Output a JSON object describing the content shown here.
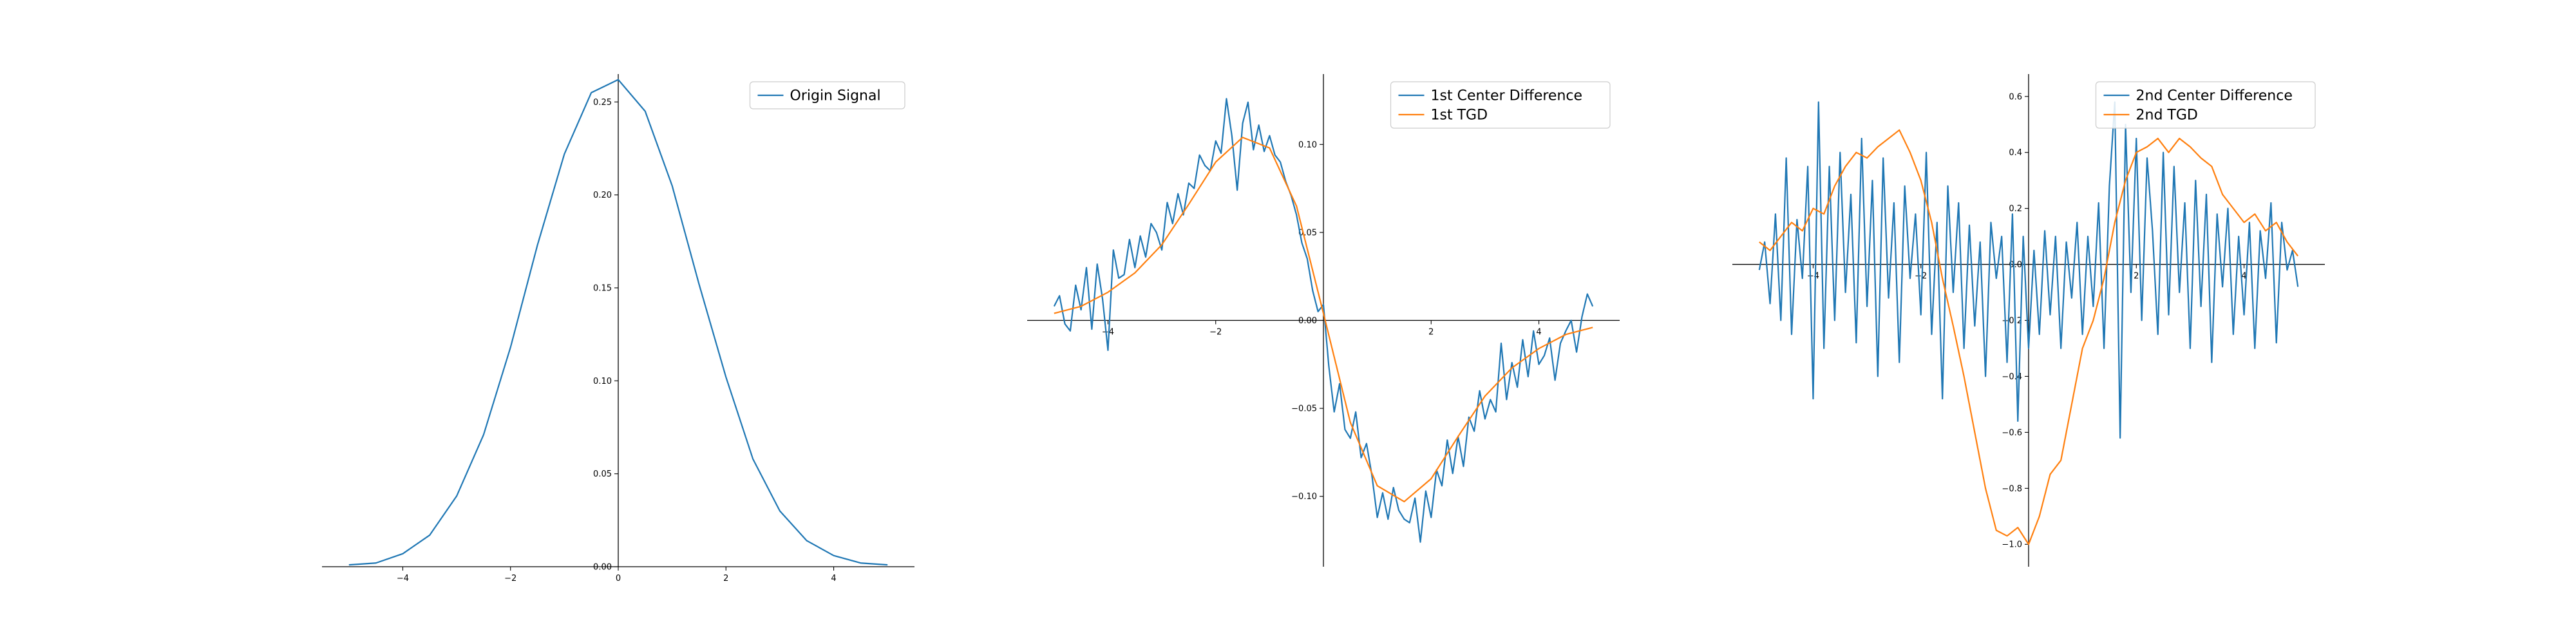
{
  "chart_data": [
    {
      "type": "line",
      "title": "",
      "xlabel": "",
      "ylabel": "",
      "xlim": [
        -5.5,
        5.5
      ],
      "ylim": [
        0,
        0.265
      ],
      "x_ticks": [
        -4,
        -2,
        0,
        2,
        4
      ],
      "x_tick_labels": [
        "−4",
        "−2",
        "0",
        "2",
        "4"
      ],
      "y_ticks": [
        0,
        0.05,
        0.1,
        0.15,
        0.2,
        0.25
      ],
      "y_tick_labels": [
        "0.00",
        "0.05",
        "0.10",
        "0.15",
        "0.20",
        "0.25"
      ],
      "spines": "centered",
      "grid": false,
      "legend_position": "top-right",
      "series": [
        {
          "name": "Origin Signal",
          "color": "#1f77b4",
          "x": [
            -5.0,
            -4.5,
            -4.0,
            -3.5,
            -3.0,
            -2.5,
            -2.0,
            -1.5,
            -1.0,
            -0.5,
            0.0,
            0.5,
            1.0,
            1.5,
            2.0,
            2.5,
            3.0,
            3.5,
            4.0,
            4.5,
            5.0
          ],
          "y": [
            0.001,
            0.002,
            0.007,
            0.017,
            0.038,
            0.071,
            0.118,
            0.173,
            0.222,
            0.255,
            0.262,
            0.245,
            0.205,
            0.152,
            0.102,
            0.058,
            0.03,
            0.014,
            0.006,
            0.002,
            0.001
          ]
        }
      ]
    },
    {
      "type": "line",
      "title": "",
      "xlabel": "",
      "ylabel": "",
      "xlim": [
        -5.5,
        5.5
      ],
      "ylim": [
        -0.14,
        0.14
      ],
      "x_ticks": [
        -4,
        -2,
        2,
        4
      ],
      "x_tick_labels": [
        "−4",
        "−2",
        "2",
        "4"
      ],
      "y_ticks": [
        -0.1,
        -0.05,
        0.0,
        0.05,
        0.1
      ],
      "y_tick_labels": [
        "−0.10",
        "−0.05",
        "0.00",
        "0.05",
        "0.10"
      ],
      "spines": "centered",
      "grid": false,
      "legend_position": "top-right",
      "series": [
        {
          "name": "1st Center Difference",
          "color": "#1f77b4",
          "x": [
            -5.0,
            -4.9,
            -4.8,
            -4.7,
            -4.6,
            -4.5,
            -4.4,
            -4.3,
            -4.2,
            -4.1,
            -4.0,
            -3.9,
            -3.8,
            -3.7,
            -3.6,
            -3.5,
            -3.4,
            -3.3,
            -3.2,
            -3.1,
            -3.0,
            -2.9,
            -2.8,
            -2.7,
            -2.6,
            -2.5,
            -2.4,
            -2.3,
            -2.2,
            -2.1,
            -2.0,
            -1.9,
            -1.8,
            -1.7,
            -1.6,
            -1.5,
            -1.4,
            -1.3,
            -1.2,
            -1.1,
            -1.0,
            -0.9,
            -0.8,
            -0.7,
            -0.6,
            -0.5,
            -0.4,
            -0.3,
            -0.2,
            -0.1,
            0.0,
            0.1,
            0.2,
            0.3,
            0.4,
            0.5,
            0.6,
            0.7,
            0.8,
            0.9,
            1.0,
            1.1,
            1.2,
            1.3,
            1.4,
            1.5,
            1.6,
            1.7,
            1.8,
            1.9,
            2.0,
            2.1,
            2.2,
            2.3,
            2.4,
            2.5,
            2.6,
            2.7,
            2.8,
            2.9,
            3.0,
            3.1,
            3.2,
            3.3,
            3.4,
            3.5,
            3.6,
            3.7,
            3.8,
            3.9,
            4.0,
            4.1,
            4.2,
            4.3,
            4.4,
            4.5,
            4.6,
            4.7,
            4.8,
            4.9,
            5.0
          ],
          "y": [
            0.008,
            0.014,
            -0.002,
            -0.006,
            0.02,
            0.006,
            0.03,
            -0.005,
            0.032,
            0.012,
            -0.017,
            0.04,
            0.024,
            0.026,
            0.046,
            0.03,
            0.048,
            0.036,
            0.055,
            0.05,
            0.04,
            0.067,
            0.055,
            0.072,
            0.06,
            0.078,
            0.075,
            0.094,
            0.088,
            0.085,
            0.102,
            0.095,
            0.126,
            0.105,
            0.074,
            0.112,
            0.124,
            0.097,
            0.111,
            0.096,
            0.105,
            0.094,
            0.09,
            0.079,
            0.071,
            0.06,
            0.044,
            0.035,
            0.017,
            0.005,
            0.009,
            -0.026,
            -0.052,
            -0.036,
            -0.062,
            -0.067,
            -0.052,
            -0.078,
            -0.07,
            -0.088,
            -0.112,
            -0.098,
            -0.113,
            -0.095,
            -0.108,
            -0.113,
            -0.115,
            -0.101,
            -0.126,
            -0.097,
            -0.112,
            -0.085,
            -0.094,
            -0.068,
            -0.087,
            -0.066,
            -0.083,
            -0.055,
            -0.063,
            -0.04,
            -0.056,
            -0.045,
            -0.052,
            -0.013,
            -0.045,
            -0.024,
            -0.038,
            -0.011,
            -0.032,
            -0.006,
            -0.025,
            -0.02,
            -0.01,
            -0.034,
            -0.013,
            -0.006,
            0.0,
            -0.018,
            0.002,
            0.015,
            0.008
          ]
        },
        {
          "name": "1st TGD",
          "color": "#ff7f0e",
          "x": [
            -5.0,
            -4.5,
            -4.0,
            -3.5,
            -3.0,
            -2.5,
            -2.0,
            -1.5,
            -1.0,
            -0.5,
            0.0,
            0.5,
            1.0,
            1.5,
            2.0,
            2.5,
            3.0,
            3.5,
            4.0,
            4.5,
            5.0
          ],
          "y": [
            0.004,
            0.008,
            0.016,
            0.027,
            0.043,
            0.066,
            0.09,
            0.104,
            0.098,
            0.065,
            0.004,
            -0.058,
            -0.094,
            -0.103,
            -0.09,
            -0.066,
            -0.043,
            -0.027,
            -0.016,
            -0.008,
            -0.004
          ]
        }
      ]
    },
    {
      "type": "line",
      "title": "",
      "xlabel": "",
      "ylabel": "",
      "xlim": [
        -5.5,
        5.5
      ],
      "ylim": [
        -1.08,
        0.68
      ],
      "x_ticks": [
        -4,
        -2,
        2,
        4
      ],
      "x_tick_labels": [
        "−4",
        "−2",
        "2",
        "4"
      ],
      "y_ticks": [
        -1.0,
        -0.8,
        -0.6,
        -0.4,
        -0.2,
        0.0,
        0.2,
        0.4,
        0.6
      ],
      "y_tick_labels": [
        "−1.0",
        "−0.8",
        "−0.6",
        "−0.4",
        "−0.2",
        "0.0",
        "0.2",
        "0.4",
        "0.6"
      ],
      "spines": "centered",
      "grid": false,
      "legend_position": "top-right",
      "series": [
        {
          "name": "2nd Center Difference",
          "color": "#1f77b4",
          "x": [
            -5.0,
            -4.9,
            -4.8,
            -4.7,
            -4.6,
            -4.5,
            -4.4,
            -4.3,
            -4.2,
            -4.1,
            -4.0,
            -3.9,
            -3.8,
            -3.7,
            -3.6,
            -3.5,
            -3.4,
            -3.3,
            -3.2,
            -3.1,
            -3.0,
            -2.9,
            -2.8,
            -2.7,
            -2.6,
            -2.5,
            -2.4,
            -2.3,
            -2.2,
            -2.1,
            -2.0,
            -1.9,
            -1.8,
            -1.7,
            -1.6,
            -1.5,
            -1.4,
            -1.3,
            -1.2,
            -1.1,
            -1.0,
            -0.9,
            -0.8,
            -0.7,
            -0.6,
            -0.5,
            -0.4,
            -0.3,
            -0.2,
            -0.1,
            0.0,
            0.1,
            0.2,
            0.3,
            0.4,
            0.5,
            0.6,
            0.7,
            0.8,
            0.9,
            1.0,
            1.1,
            1.2,
            1.3,
            1.4,
            1.5,
            1.6,
            1.7,
            1.8,
            1.9,
            2.0,
            2.1,
            2.2,
            2.3,
            2.4,
            2.5,
            2.6,
            2.7,
            2.8,
            2.9,
            3.0,
            3.1,
            3.2,
            3.3,
            3.4,
            3.5,
            3.6,
            3.7,
            3.8,
            3.9,
            4.0,
            4.1,
            4.2,
            4.3,
            4.4,
            4.5,
            4.6,
            4.7,
            4.8,
            4.9,
            5.0
          ],
          "y": [
            -0.02,
            0.08,
            -0.14,
            0.18,
            -0.2,
            0.38,
            -0.25,
            0.16,
            -0.05,
            0.35,
            -0.48,
            0.58,
            -0.3,
            0.35,
            -0.2,
            0.4,
            -0.1,
            0.25,
            -0.28,
            0.45,
            -0.15,
            0.3,
            -0.4,
            0.38,
            -0.12,
            0.22,
            -0.35,
            0.28,
            -0.05,
            0.18,
            -0.18,
            0.4,
            -0.25,
            0.15,
            -0.48,
            0.28,
            -0.1,
            0.22,
            -0.3,
            0.14,
            -0.22,
            0.08,
            -0.4,
            0.15,
            -0.05,
            0.1,
            -0.35,
            0.18,
            -0.56,
            0.1,
            -0.3,
            0.05,
            -0.25,
            0.12,
            -0.18,
            0.1,
            -0.3,
            0.08,
            -0.12,
            0.15,
            -0.25,
            0.1,
            -0.15,
            0.22,
            -0.3,
            0.28,
            0.58,
            -0.62,
            0.5,
            -0.1,
            0.45,
            -0.2,
            0.38,
            0.12,
            -0.25,
            0.4,
            -0.18,
            0.35,
            -0.1,
            0.22,
            -0.3,
            0.3,
            -0.15,
            0.25,
            -0.35,
            0.18,
            -0.08,
            0.2,
            -0.25,
            0.1,
            -0.18,
            0.15,
            -0.3,
            0.12,
            -0.05,
            0.22,
            -0.28,
            0.15,
            -0.02,
            0.05,
            -0.08
          ]
        },
        {
          "name": "2nd TGD",
          "color": "#ff7f0e",
          "x": [
            -5.0,
            -4.8,
            -4.6,
            -4.4,
            -4.2,
            -4.0,
            -3.8,
            -3.6,
            -3.4,
            -3.2,
            -3.0,
            -2.8,
            -2.6,
            -2.4,
            -2.2,
            -2.0,
            -1.8,
            -1.6,
            -1.4,
            -1.2,
            -1.0,
            -0.8,
            -0.6,
            -0.4,
            -0.2,
            0.0,
            0.2,
            0.4,
            0.6,
            0.8,
            1.0,
            1.2,
            1.4,
            1.6,
            1.8,
            2.0,
            2.2,
            2.4,
            2.6,
            2.8,
            3.0,
            3.2,
            3.4,
            3.6,
            3.8,
            4.0,
            4.2,
            4.4,
            4.6,
            4.8,
            5.0
          ],
          "y": [
            0.08,
            0.05,
            0.1,
            0.15,
            0.12,
            0.2,
            0.18,
            0.28,
            0.35,
            0.4,
            0.38,
            0.42,
            0.45,
            0.48,
            0.4,
            0.3,
            0.15,
            -0.05,
            -0.22,
            -0.4,
            -0.6,
            -0.8,
            -0.95,
            -0.97,
            -0.94,
            -1.0,
            -0.9,
            -0.75,
            -0.7,
            -0.5,
            -0.3,
            -0.2,
            -0.05,
            0.15,
            0.3,
            0.4,
            0.42,
            0.45,
            0.4,
            0.45,
            0.42,
            0.38,
            0.35,
            0.25,
            0.2,
            0.15,
            0.18,
            0.12,
            0.15,
            0.08,
            0.03
          ]
        }
      ]
    }
  ]
}
